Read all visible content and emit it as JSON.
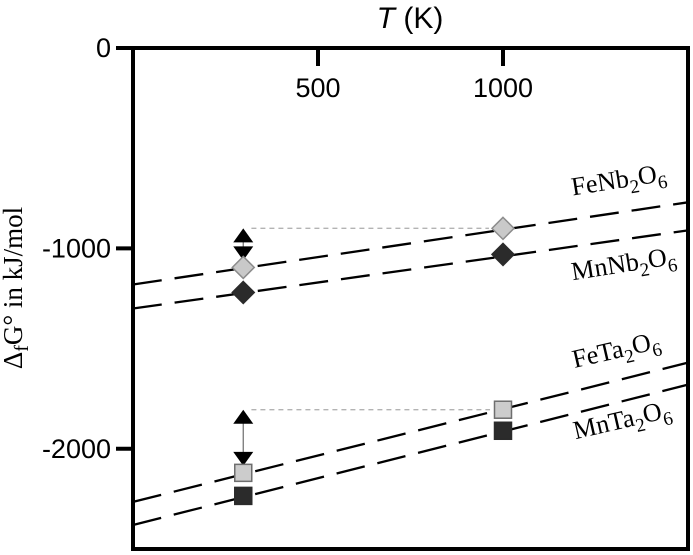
{
  "chart_data": {
    "type": "line",
    "title": "T (K)",
    "title_segments": [
      {
        "t": "T",
        "italic": true
      },
      {
        "t": " (K)",
        "italic": false
      }
    ],
    "ylabel": "ΔfG° in kJ/mol",
    "ylabel_segments": [
      {
        "t": "Δ",
        "sub": false
      },
      {
        "t": "f",
        "sub": true
      },
      {
        "t": "G° in kJ/mol",
        "sub": false
      }
    ],
    "x_axis": {
      "position": "top",
      "range": [
        0,
        1500
      ],
      "ticks": [
        {
          "value": 500,
          "label": "500"
        },
        {
          "value": 1000,
          "label": "1000"
        }
      ]
    },
    "y_axis": {
      "units": "kJ/mol",
      "range": [
        -2500,
        0
      ],
      "ticks": [
        {
          "value": 0,
          "label": "0"
        },
        {
          "value": -1000,
          "label": "-1000"
        },
        {
          "value": -2000,
          "label": "-2000"
        }
      ]
    },
    "grid": false,
    "legend": "inline-labels",
    "line_style": {
      "color": "#000000",
      "dash": "long-dash"
    },
    "series": [
      {
        "name": "FeNb2O6",
        "marker": "diamond",
        "fill": "#c9c9c9",
        "stroke": "#8c8c8c",
        "points": [
          {
            "T": 298,
            "G": -1095
          },
          {
            "T": 1000,
            "G": -900
          }
        ],
        "trend": {
          "T": [
            0,
            1500
          ],
          "G": [
            -1180,
            -770
          ]
        },
        "label": {
          "text": "FeNb2O6",
          "px": [
            620,
            188
          ],
          "rotation": -9
        }
      },
      {
        "name": "MnNb2O6",
        "marker": "diamond",
        "fill": "#2b2b2b",
        "stroke": "#2b2b2b",
        "points": [
          {
            "T": 298,
            "G": -1220
          },
          {
            "T": 1000,
            "G": -1030
          }
        ],
        "trend": {
          "T": [
            0,
            1500
          ],
          "G": [
            -1300,
            -910
          ]
        },
        "label": {
          "text": "MnNb2O6",
          "px": [
            625,
            272
          ],
          "rotation": -9
        }
      },
      {
        "name": "FeTa2O6",
        "marker": "square",
        "fill": "#cccccc",
        "stroke": "#6e6e6e",
        "points": [
          {
            "T": 298,
            "G": -2120
          },
          {
            "T": 1000,
            "G": -1805
          }
        ],
        "trend": {
          "T": [
            0,
            1500
          ],
          "G": [
            -2265,
            -1570
          ]
        },
        "label": {
          "text": "FeTa2O6",
          "px": [
            618,
            358
          ],
          "rotation": -13
        }
      },
      {
        "name": "MnTa2O6",
        "marker": "square",
        "fill": "#2b2b2b",
        "stroke": "#2b2b2b",
        "points": [
          {
            "T": 298,
            "G": -2235
          },
          {
            "T": 1000,
            "G": -1910
          }
        ],
        "trend": {
          "T": [
            0,
            1500
          ],
          "G": [
            -2380,
            -1680
          ]
        },
        "label": {
          "text": "MnTa2O6",
          "px": [
            624,
            428
          ],
          "rotation": -13
        }
      }
    ],
    "annotations": {
      "range_arrows": [
        {
          "T": 298,
          "G_top": -900,
          "G_bottom": -1060
        },
        {
          "T": 298,
          "G_top": -1805,
          "G_bottom": -2085
        }
      ],
      "dotted_connectors": [
        {
          "G": -900,
          "T_from": 320,
          "T_to": 962
        },
        {
          "G": -1805,
          "T_from": 320,
          "T_to": 965
        }
      ],
      "connector_color": "#b3b3b3",
      "arrow_color": "#000000"
    }
  }
}
